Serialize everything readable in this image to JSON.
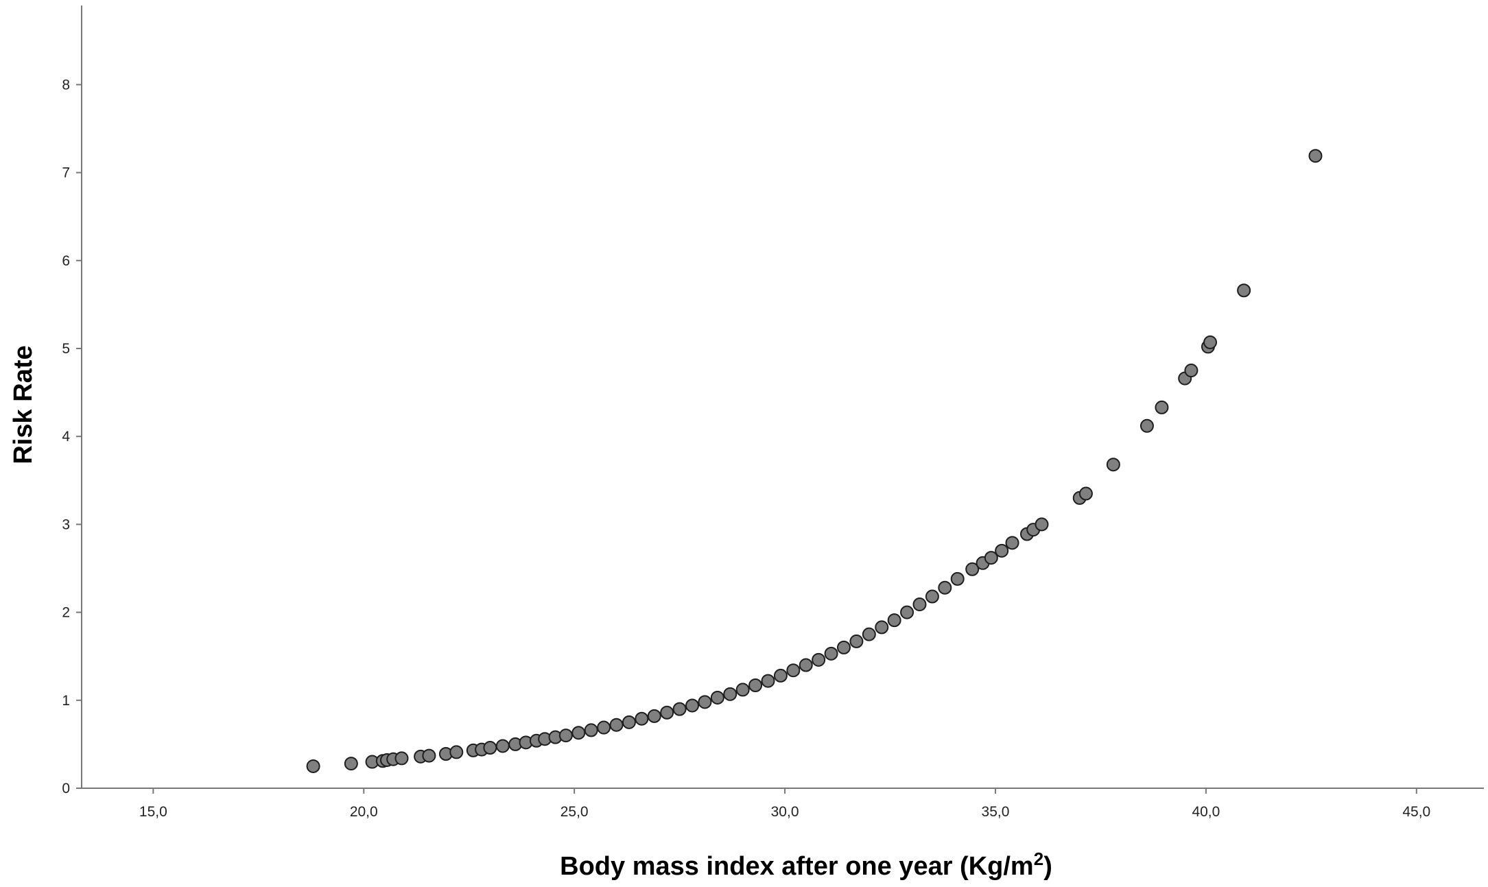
{
  "chart_data": {
    "type": "scatter",
    "xlabel": "Body mass index after one year (Kg/m",
    "xlabel_superscript": "2",
    "xlabel_suffix": ")",
    "ylabel": "Risk Rate",
    "xlim": [
      13.3,
      46.6
    ],
    "ylim": [
      0,
      8.9
    ],
    "x_ticks": [
      15,
      20,
      25,
      30,
      35,
      40,
      45
    ],
    "x_tick_labels": [
      "15,0",
      "20,0",
      "25,0",
      "30,0",
      "35,0",
      "40,0",
      "45,0"
    ],
    "y_ticks": [
      0,
      1,
      2,
      3,
      4,
      5,
      6,
      7,
      8
    ],
    "y_tick_labels": [
      "0",
      "1",
      "2",
      "3",
      "4",
      "5",
      "6",
      "7",
      "8"
    ],
    "grid": false,
    "legend": "none",
    "marker_color": "#808080",
    "marker_edge_color": "#1e1e1e",
    "series": [
      {
        "x": [
          18.8,
          19.7,
          20.2,
          20.45,
          20.55,
          20.7,
          20.9,
          21.35,
          21.55,
          21.95,
          22.2,
          22.6,
          22.8,
          23.0,
          23.3,
          23.6,
          23.85,
          24.1,
          24.3,
          24.55,
          24.8,
          25.1,
          25.4,
          25.7,
          26.0,
          26.3,
          26.6,
          26.9,
          27.2,
          27.5,
          27.8,
          28.1,
          28.4,
          28.7,
          29.0,
          29.3,
          29.6,
          29.9,
          30.2,
          30.5,
          30.8,
          31.1,
          31.4,
          31.7,
          32.0,
          32.3,
          32.6,
          32.9,
          33.2,
          33.5,
          33.8,
          34.1,
          34.45,
          34.7,
          34.9,
          35.15,
          35.4,
          35.75,
          35.9,
          36.1,
          37.0,
          37.15,
          37.8,
          38.6,
          38.95,
          39.5,
          39.65,
          40.05,
          40.1,
          40.9,
          42.6
        ],
        "y": [
          0.25,
          0.28,
          0.3,
          0.31,
          0.32,
          0.33,
          0.34,
          0.36,
          0.37,
          0.39,
          0.41,
          0.43,
          0.44,
          0.46,
          0.48,
          0.5,
          0.52,
          0.54,
          0.56,
          0.58,
          0.6,
          0.63,
          0.66,
          0.69,
          0.72,
          0.75,
          0.79,
          0.82,
          0.86,
          0.9,
          0.94,
          0.98,
          1.03,
          1.07,
          1.12,
          1.17,
          1.22,
          1.28,
          1.34,
          1.4,
          1.46,
          1.53,
          1.6,
          1.67,
          1.75,
          1.83,
          1.91,
          2.0,
          2.09,
          2.18,
          2.28,
          2.38,
          2.49,
          2.56,
          2.62,
          2.7,
          2.79,
          2.89,
          2.94,
          3.0,
          3.3,
          3.35,
          3.68,
          4.12,
          4.33,
          4.66,
          4.75,
          5.02,
          5.07,
          5.66,
          7.19
        ]
      }
    ]
  }
}
